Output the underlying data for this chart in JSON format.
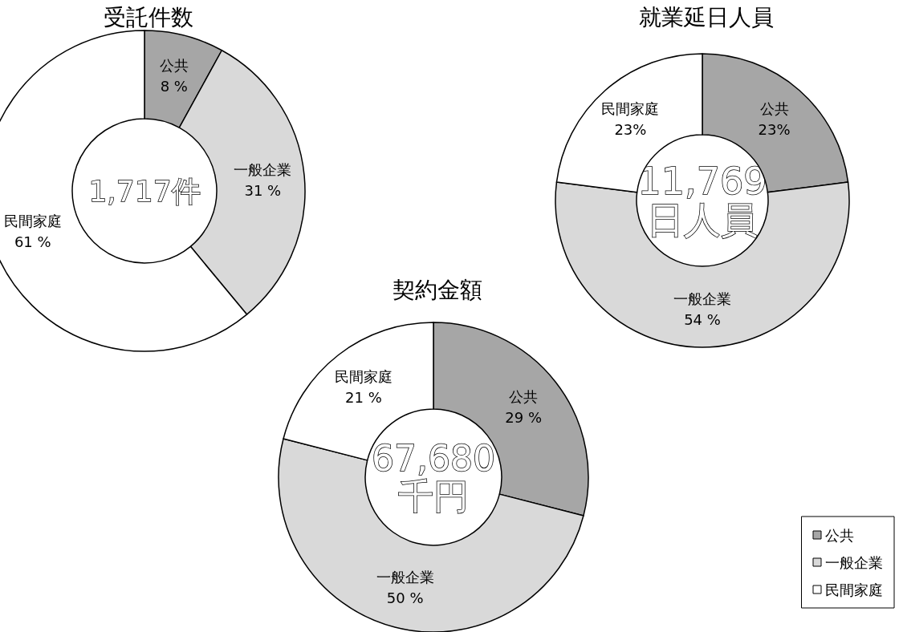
{
  "chart_data": [
    {
      "type": "donut",
      "title": "受託件数",
      "categories": [
        "公共",
        "一般企業",
        "民間家庭"
      ],
      "values": [
        8,
        31,
        61
      ],
      "value_labels": [
        "8 %",
        "31 %",
        "61 %"
      ],
      "colors": [
        "#a6a6a6",
        "#d9d9d9",
        "#ffffff"
      ],
      "annotations": [
        "1,717件"
      ]
    },
    {
      "type": "donut",
      "title": "就業延日人員",
      "categories": [
        "公共",
        "一般企業",
        "民間家庭"
      ],
      "values": [
        23,
        54,
        23
      ],
      "value_labels": [
        "23%",
        "54 %",
        "23%"
      ],
      "colors": [
        "#a6a6a6",
        "#d9d9d9",
        "#ffffff"
      ],
      "annotations": [
        "11,769",
        "日人員"
      ]
    },
    {
      "type": "donut",
      "title": "契約金額",
      "categories": [
        "公共",
        "一般企業",
        "民間家庭"
      ],
      "values": [
        29,
        50,
        21
      ],
      "value_labels": [
        "29 %",
        "50 %",
        "21 %"
      ],
      "colors": [
        "#a6a6a6",
        "#d9d9d9",
        "#ffffff"
      ],
      "annotations": [
        "67,680",
        "千円"
      ],
      "legend": "bottom right"
    }
  ]
}
